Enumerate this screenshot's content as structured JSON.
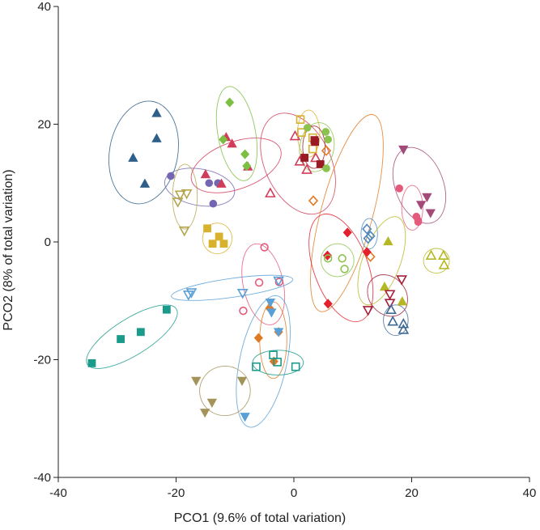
{
  "chart_data": {
    "type": "scatter",
    "title": "",
    "xlabel": "PCO1 (9.6% of total variation)",
    "ylabel": "PCO2 (8% of total variation)",
    "xlim": [
      -40,
      40
    ],
    "ylim": [
      -40,
      40
    ],
    "xticks": [
      "-40",
      "-20",
      "0",
      "20",
      "40"
    ],
    "yticks": [
      "40",
      "20",
      "0",
      "-20",
      "-40"
    ],
    "grid": false,
    "legend": "none",
    "groups": [
      {
        "marker": "triangle-up",
        "filled": true,
        "color": "#2e5f8a",
        "ellipse": {
          "cx": -25.5,
          "cy": 15.2,
          "rx": 5.8,
          "ry": 8.8,
          "angle": -10
        },
        "points": [
          [
            -27.3,
            14.3
          ],
          [
            -23.3,
            21.9
          ],
          [
            -25.3,
            9.9
          ],
          [
            -23.3,
            17.6
          ]
        ]
      },
      {
        "marker": "circle",
        "filled": true,
        "color": "#7466b2",
        "ellipse": {
          "cx": -16,
          "cy": 9.3,
          "rx": 6.0,
          "ry": 3.1,
          "angle": -10
        },
        "points": [
          [
            -20.9,
            11.2
          ],
          [
            -14.4,
            10.0
          ],
          [
            -12.9,
            10.0
          ],
          [
            -13.7,
            6.5
          ]
        ]
      },
      {
        "marker": "triangle-down",
        "filled": false,
        "color": "#b5a64e",
        "ellipse": {
          "cx": -18.5,
          "cy": 7.7,
          "rx": 2.1,
          "ry": 5.5,
          "angle": 0
        },
        "points": [
          [
            -19.3,
            8.0
          ],
          [
            -19.7,
            6.8
          ],
          [
            -18.2,
            8.2
          ],
          [
            -18.6,
            1.9
          ]
        ]
      },
      {
        "marker": "triangle-up",
        "filled": true,
        "color": "#d23c5b",
        "ellipse": {
          "cx": -9.8,
          "cy": 13.0,
          "rx": 8.0,
          "ry": 4.0,
          "angle": 20
        },
        "points": [
          [
            -15.0,
            11.5
          ],
          [
            -11.5,
            17.8
          ],
          [
            -10.5,
            16.7
          ],
          [
            -7.8,
            12.8
          ],
          [
            -12.3,
            9.9
          ]
        ]
      },
      {
        "marker": "diamond",
        "filled": true,
        "color": "#7cbf42",
        "ellipse": {
          "cx": -9.7,
          "cy": 18.4,
          "rx": 3.2,
          "ry": 8.1,
          "angle": 10
        },
        "points": [
          [
            -10.9,
            23.7
          ],
          [
            -12.0,
            17.4
          ],
          [
            -8.3,
            14.9
          ],
          [
            -8.0,
            12.9
          ]
        ]
      },
      {
        "marker": "square",
        "filled": true,
        "color": "#d8b22d",
        "ellipse": {
          "cx": -13.0,
          "cy": 0.6,
          "rx": 2.5,
          "ry": 2.6,
          "angle": 0
        },
        "points": [
          [
            -14.7,
            2.3
          ],
          [
            -12.7,
            0.9
          ],
          [
            -13.8,
            -0.3
          ],
          [
            -11.9,
            -0.3
          ]
        ]
      },
      {
        "marker": "triangle-up",
        "filled": false,
        "color": "#d23c5b",
        "ellipse": {
          "cx": 0.7,
          "cy": 13.3,
          "rx": 5.6,
          "ry": 9.1,
          "angle": 25
        },
        "points": [
          [
            -4.0,
            8.3
          ],
          [
            0.2,
            18.0
          ],
          [
            1.0,
            13.7
          ],
          [
            2.2,
            12.3
          ],
          [
            3.7,
            14.3
          ]
        ]
      },
      {
        "marker": "square",
        "filled": false,
        "color": "#d8b22d",
        "ellipse": {
          "cx": 2.5,
          "cy": 18.4,
          "rx": 1.9,
          "ry": 4.0,
          "angle": 0
        },
        "points": [
          [
            1.1,
            20.8
          ],
          [
            1.3,
            18.6
          ],
          [
            3.2,
            17.7
          ],
          [
            3.2,
            15.8
          ]
        ]
      },
      {
        "marker": "square",
        "filled": true,
        "color": "#9b1b24",
        "ellipse": {
          "cx": 3.4,
          "cy": 16.1,
          "rx": 1.9,
          "ry": 3.6,
          "angle": 0
        },
        "points": [
          [
            3.5,
            17.3
          ],
          [
            3.6,
            17.0
          ],
          [
            1.8,
            14.3
          ],
          [
            4.5,
            13.2
          ]
        ]
      },
      {
        "marker": "circle",
        "filled": true,
        "color": "#8cc24e",
        "ellipse": {
          "cx": 3.9,
          "cy": 16.1,
          "rx": 2.9,
          "ry": 4.2,
          "angle": -10
        },
        "points": [
          [
            2.3,
            19.4
          ],
          [
            5.4,
            18.7
          ],
          [
            5.8,
            17.4
          ],
          [
            5.5,
            12.5
          ]
        ]
      },
      {
        "marker": "diamond",
        "filled": false,
        "color": "#e07a22",
        "ellipse": {
          "cx": 9.0,
          "cy": 4.9,
          "rx": 4.4,
          "ry": 17.3,
          "angle": -15
        },
        "points": [
          [
            5.5,
            15.5
          ],
          [
            3.3,
            7.0
          ],
          [
            13.0,
            -2.5
          ]
        ]
      },
      {
        "marker": "diamond",
        "filled": true,
        "color": "#e2202e",
        "ellipse": {
          "cx": 8.0,
          "cy": -4.4,
          "rx": 4.6,
          "ry": 9.6,
          "angle": 20
        },
        "points": [
          [
            9.1,
            1.6
          ],
          [
            5.7,
            -2.3
          ],
          [
            12.4,
            -1.7
          ],
          [
            5.8,
            -10.5
          ]
        ]
      },
      {
        "marker": "circle",
        "filled": false,
        "color": "#8cc24e",
        "ellipse": {
          "cx": 7.4,
          "cy": -3.1,
          "rx": 2.8,
          "ry": 2.8,
          "angle": 0
        },
        "points": [
          [
            5.8,
            -2.8
          ],
          [
            8.2,
            -2.8
          ],
          [
            8.6,
            -4.6
          ]
        ]
      },
      {
        "marker": "diamond",
        "filled": false,
        "color": "#4f87c0",
        "ellipse": {
          "cx": 12.8,
          "cy": 1.4,
          "rx": 1.4,
          "ry": 2.6,
          "angle": 0
        },
        "points": [
          [
            12.4,
            2.2
          ],
          [
            13.0,
            1.0
          ],
          [
            12.6,
            0.6
          ]
        ]
      },
      {
        "marker": "triangle-up",
        "filled": true,
        "color": "#b5b823",
        "ellipse": {
          "cx": 14.9,
          "cy": -3.2,
          "rx": 3.2,
          "ry": 7.9,
          "angle": -20
        },
        "points": [
          [
            16.0,
            0.1
          ],
          [
            15.4,
            -7.6
          ],
          [
            18.4,
            -10.1
          ]
        ]
      },
      {
        "marker": "triangle-down",
        "filled": false,
        "color": "#a5203b",
        "ellipse": {
          "cx": 15.9,
          "cy": -9.1,
          "rx": 3.1,
          "ry": 3.8,
          "angle": 40
        },
        "points": [
          [
            18.3,
            -6.4
          ],
          [
            16.3,
            -8.9
          ],
          [
            16.3,
            -10.4
          ],
          [
            12.6,
            -11.6
          ]
        ]
      },
      {
        "marker": "triangle-up",
        "filled": false,
        "color": "#3d6a95",
        "ellipse": {
          "cx": 17.3,
          "cy": -13.3,
          "rx": 2.1,
          "ry": 2.6,
          "angle": 0
        },
        "points": [
          [
            16.5,
            -11.5
          ],
          [
            16.8,
            -13.5
          ],
          [
            18.6,
            -13.9
          ],
          [
            18.6,
            -14.9
          ]
        ]
      },
      {
        "marker": "triangle-down",
        "filled": true,
        "color": "#a24a78",
        "ellipse": {
          "cx": 21.3,
          "cy": 9.6,
          "rx": 4.1,
          "ry": 6.7,
          "angle": 20
        },
        "points": [
          [
            18.6,
            15.7
          ],
          [
            22.6,
            7.6
          ],
          [
            21.6,
            6.3
          ],
          [
            23.2,
            4.9
          ]
        ]
      },
      {
        "marker": "circle",
        "filled": true,
        "color": "#e55a7a",
        "ellipse": {
          "cx": 20.1,
          "cy": 5.8,
          "rx": 1.8,
          "ry": 3.8,
          "angle": 0
        },
        "points": [
          [
            17.9,
            9.1
          ],
          [
            20.8,
            4.3
          ],
          [
            21.1,
            3.6
          ],
          [
            21.1,
            3.4
          ]
        ]
      },
      {
        "marker": "triangle-up",
        "filled": false,
        "color": "#b5b823",
        "ellipse": {
          "cx": 24.2,
          "cy": -3.2,
          "rx": 2.2,
          "ry": 2.1,
          "angle": 0
        },
        "points": [
          [
            23.3,
            -2.3
          ],
          [
            25.4,
            -2.3
          ],
          [
            25.5,
            -3.9
          ]
        ]
      },
      {
        "marker": "circle",
        "filled": false,
        "color": "#e55a7a",
        "ellipse": {
          "cx": -5.2,
          "cy": -7.2,
          "rx": 3.4,
          "ry": 7.0,
          "angle": 12
        },
        "points": [
          [
            -5.0,
            -0.9
          ],
          [
            -5.9,
            -6.9
          ],
          [
            -2.5,
            -6.8
          ],
          [
            -8.6,
            -11.7
          ]
        ]
      },
      {
        "marker": "triangle-down",
        "filled": false,
        "color": "#5aa0d6",
        "ellipse": {
          "cx": -10.5,
          "cy": -7.8,
          "rx": 10.4,
          "ry": 1.6,
          "angle": 8
        },
        "points": [
          [
            -17.4,
            -8.6
          ],
          [
            -17.9,
            -9.0
          ],
          [
            -8.7,
            -8.7
          ],
          [
            -2.6,
            -6.6
          ]
        ]
      },
      {
        "marker": "square",
        "filled": true,
        "color": "#1b9b8b",
        "ellipse": {
          "cx": -27.5,
          "cy": -16.1,
          "rx": 8.9,
          "ry": 3.1,
          "angle": 32
        },
        "points": [
          [
            -21.6,
            -11.5
          ],
          [
            -26.0,
            -15.3
          ],
          [
            -29.4,
            -16.5
          ],
          [
            -34.3,
            -20.6
          ]
        ]
      },
      {
        "marker": "diamond",
        "filled": true,
        "color": "#e07a22",
        "ellipse": {
          "cx": -3.5,
          "cy": -16.7,
          "rx": 2.3,
          "ry": 6.5,
          "angle": 0
        },
        "points": [
          [
            -4.1,
            -11.3
          ],
          [
            -2.6,
            -15.3
          ],
          [
            -6.0,
            -16.3
          ],
          [
            -3.4,
            -20.3
          ]
        ]
      },
      {
        "marker": "triangle-down",
        "filled": true,
        "color": "#5aa0d6",
        "ellipse": {
          "cx": -5.2,
          "cy": -20.3,
          "rx": 4.0,
          "ry": 11.4,
          "angle": -12
        },
        "points": [
          [
            -4.0,
            -10.3
          ],
          [
            -3.8,
            -12.0
          ],
          [
            -2.6,
            -15.3
          ],
          [
            -8.3,
            -29.7
          ]
        ]
      },
      {
        "marker": "square",
        "filled": false,
        "color": "#1b9b8b",
        "ellipse": {
          "cx": -2.7,
          "cy": -20.5,
          "rx": 4.3,
          "ry": 2.1,
          "angle": 0
        },
        "points": [
          [
            -6.4,
            -21.2
          ],
          [
            -3.5,
            -19.2
          ],
          [
            -2.8,
            -20.4
          ],
          [
            0.3,
            -21.2
          ]
        ]
      },
      {
        "marker": "triangle-down",
        "filled": true,
        "color": "#a5945a",
        "ellipse": {
          "cx": -11.7,
          "cy": -25.3,
          "rx": 4.3,
          "ry": 4.2,
          "angle": 10
        },
        "points": [
          [
            -16.6,
            -23.6
          ],
          [
            -13.9,
            -27.3
          ],
          [
            -8.8,
            -23.6
          ],
          [
            -15.1,
            -29.0
          ]
        ]
      }
    ]
  }
}
